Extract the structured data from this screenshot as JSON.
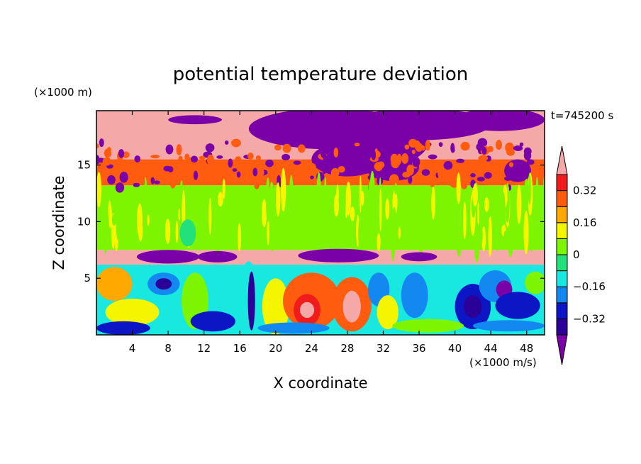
{
  "chart_data": {
    "type": "heatmap",
    "title": "potential temperature deviation",
    "xlabel": "X coordinate",
    "ylabel": "Z coordinate",
    "x_unit": "(×1000 m/s)",
    "y_unit": "(×1000 m)",
    "time_label": "t=745200 s",
    "xlim": [
      0,
      50
    ],
    "ylim": [
      0,
      19.8
    ],
    "x_ticks": [
      4,
      8,
      12,
      16,
      20,
      24,
      28,
      32,
      36,
      40,
      44,
      48
    ],
    "y_ticks": [
      5,
      10,
      15
    ],
    "colorbar": {
      "levels": [
        -0.4,
        -0.32,
        -0.24,
        -0.16,
        -0.08,
        0,
        0.08,
        0.16,
        0.24,
        0.32,
        0.4
      ],
      "tick_labels": [
        "0.32",
        "0.16",
        "0",
        "−0.16",
        "−0.32"
      ],
      "tick_values": [
        0.32,
        0.16,
        0,
        -0.16,
        -0.32
      ],
      "colors": [
        "#7a00a8",
        "#2a0099",
        "#0c16c4",
        "#1388f0",
        "#19e8e0",
        "#22e07a",
        "#7ef500",
        "#f5f500",
        "#ffa800",
        "#ff5c10",
        "#f01c1c",
        "#f5a8a8"
      ],
      "extend": "both"
    },
    "regions": [
      {
        "z": [
          15.5,
          19.8
        ],
        "value": 0.45,
        "note": "upper layer, pink with purple patches"
      },
      {
        "z": [
          13.2,
          15.5
        ],
        "value": 0.3,
        "note": "red/orange transition band"
      },
      {
        "z": [
          7.5,
          13.2
        ],
        "value": 0.05,
        "note": "green mid layer"
      },
      {
        "z": [
          6.2,
          7.5
        ],
        "value": 0.45,
        "note": "pink thin layer"
      },
      {
        "z": [
          0,
          6.2
        ],
        "value": -0.1,
        "note": "turbulent lower layer"
      }
    ]
  }
}
